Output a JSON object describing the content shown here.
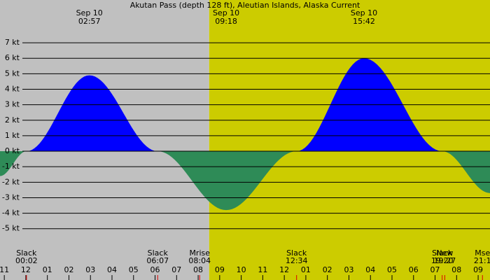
{
  "chart_data": {
    "type": "area",
    "title": "Akutan Pass (depth 128 ft), Aleutian Islands, Alaska Current",
    "x": [
      -1.2,
      0.03,
      2.95,
      6.12,
      9.3,
      12.57,
      15.7,
      19.33,
      21.55
    ],
    "series": [
      {
        "values": [
          -1.6,
          0,
          4.9,
          0,
          -3.8,
          0,
          6.0,
          0,
          -2.7
        ],
        "color": "#0000ff",
        "negative_color": "#2e8b57"
      }
    ],
    "xlim": [
      -1.2,
      21.55
    ],
    "xticks": [
      {
        "value": -1,
        "label": "11"
      },
      {
        "value": 0,
        "label": "12"
      },
      {
        "value": 1,
        "label": "01"
      },
      {
        "value": 2,
        "label": "02"
      },
      {
        "value": 3,
        "label": "03"
      },
      {
        "value": 4,
        "label": "04"
      },
      {
        "value": 5,
        "label": "05"
      },
      {
        "value": 6,
        "label": "06"
      },
      {
        "value": 7,
        "label": "07"
      },
      {
        "value": 8,
        "label": "08"
      },
      {
        "value": 9,
        "label": "09"
      },
      {
        "value": 10,
        "label": "10"
      },
      {
        "value": 11,
        "label": "11"
      },
      {
        "value": 12,
        "label": "12"
      },
      {
        "value": 13,
        "label": "01"
      },
      {
        "value": 14,
        "label": "02"
      },
      {
        "value": 15,
        "label": "03"
      },
      {
        "value": 16,
        "label": "04"
      },
      {
        "value": 17,
        "label": "05"
      },
      {
        "value": 18,
        "label": "06"
      },
      {
        "value": 19,
        "label": "07"
      },
      {
        "value": 20,
        "label": "08"
      },
      {
        "value": 21,
        "label": "09"
      }
    ],
    "ylim": [
      -8.31,
      9.76
    ],
    "yticks": [
      {
        "value": 7,
        "label": "7 kt"
      },
      {
        "value": 6,
        "label": "6 kt"
      },
      {
        "value": 5,
        "label": "5 kt"
      },
      {
        "value": 4,
        "label": "4 kt"
      },
      {
        "value": 3,
        "label": "3 kt"
      },
      {
        "value": 2,
        "label": "2 kt"
      },
      {
        "value": 1,
        "label": "1 kt"
      },
      {
        "value": 0,
        "label": "0 kt"
      },
      {
        "value": -1,
        "label": "-1 kt"
      },
      {
        "value": -2,
        "label": "-2 kt"
      },
      {
        "value": -3,
        "label": "-3 kt"
      },
      {
        "value": -4,
        "label": "-4 kt"
      },
      {
        "value": -5,
        "label": "-5 kt"
      }
    ],
    "grid": true,
    "night_color": "#c0c0c0",
    "day_color": "#cccc00",
    "day_start": 8.51,
    "peaks": [
      {
        "date": "Sep 10",
        "time": "02:57",
        "x": 2.95
      },
      {
        "date": "Sep 10",
        "time": "09:18",
        "x": 9.3
      },
      {
        "date": "Sep 10",
        "time": "15:42",
        "x": 15.7
      }
    ],
    "events": [
      {
        "name": "Slack",
        "time": "00:02",
        "x": 0.03
      },
      {
        "name": "Slack",
        "time": "06:07",
        "x": 6.12
      },
      {
        "name": "Mrise",
        "time": "08:04",
        "x": 8.07
      },
      {
        "name": "Slack",
        "time": "12:34",
        "x": 12.57
      },
      {
        "name": "Slack",
        "time": "19:20",
        "x": 19.33
      },
      {
        "name": "New",
        "time": "19:27",
        "x": 19.45
      },
      {
        "name": "Mse",
        "time": "21:1",
        "x": 21.2
      }
    ]
  }
}
